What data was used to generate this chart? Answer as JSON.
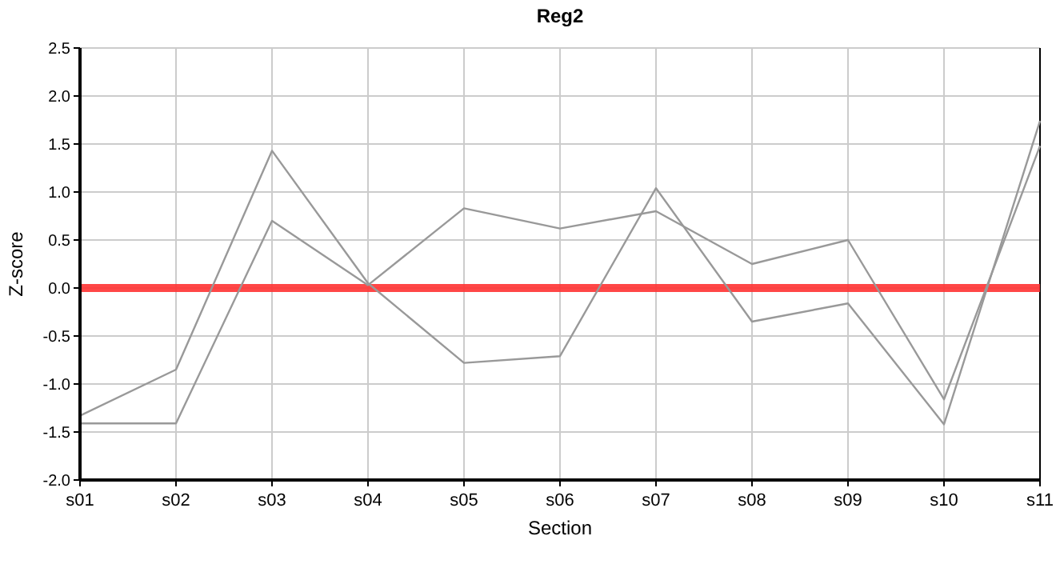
{
  "chart_data": {
    "type": "line",
    "title": "Reg2",
    "xlabel": "Section",
    "ylabel": "Z-score",
    "categories": [
      "s01",
      "s02",
      "s03",
      "s04",
      "s05",
      "s06",
      "s07",
      "s08",
      "s09",
      "s10",
      "s11"
    ],
    "series": [
      {
        "color": "#999999",
        "values": [
          -1.33,
          -0.85,
          1.43,
          0.05,
          -0.78,
          -0.71,
          1.04,
          -0.35,
          -0.16,
          -1.42,
          1.74
        ]
      },
      {
        "color": "#999999",
        "values": [
          -1.41,
          -1.41,
          0.7,
          0.03,
          0.83,
          0.62,
          0.8,
          0.25,
          0.5,
          -1.16,
          1.48
        ]
      }
    ],
    "ylim": [
      -2.0,
      2.5
    ],
    "yticks": [
      {
        "value": -2,
        "label": "-2.0"
      },
      {
        "value": -1.5,
        "label": "-1.5"
      },
      {
        "value": -1,
        "label": "-1.0"
      },
      {
        "value": -0.5,
        "label": "-0.5"
      },
      {
        "value": 0,
        "label": "0.0"
      },
      {
        "value": 0.5,
        "label": "0.5"
      },
      {
        "value": 1,
        "label": "1.0"
      },
      {
        "value": 1.5,
        "label": "1.5"
      },
      {
        "value": 2,
        "label": "2.0"
      },
      {
        "value": 2.5,
        "label": "2.5"
      }
    ],
    "ref_lines": [
      {
        "axis": "y",
        "value": 0,
        "color": "#ff3333"
      }
    ],
    "grid": true,
    "marker": "none",
    "line_style": "solid"
  }
}
